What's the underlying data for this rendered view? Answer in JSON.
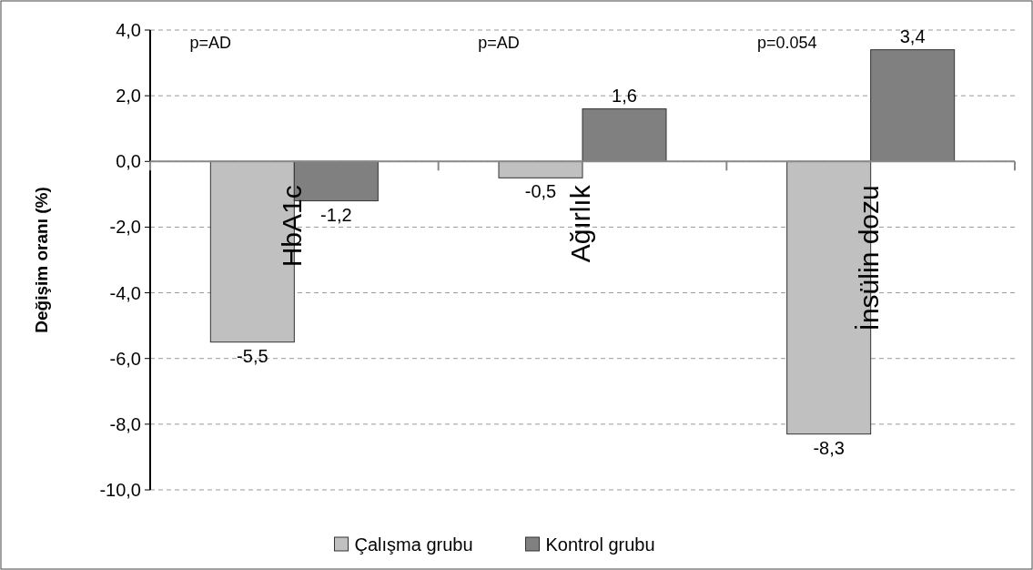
{
  "chart_data": {
    "type": "bar",
    "ylabel": "Değişim oranı (%)",
    "categories": [
      "HbA1c",
      "Ağırlık",
      "İnsülin dozu"
    ],
    "series": [
      {
        "name": "Çalışma grubu",
        "color": "#c0c0c0",
        "values": [
          -5.5,
          -0.5,
          -8.3
        ],
        "value_labels": [
          "-5,5",
          "-0,5",
          "-8,3"
        ]
      },
      {
        "name": "Kontrol grubu",
        "color": "#808080",
        "values": [
          -1.2,
          1.6,
          3.4
        ],
        "value_labels": [
          "-1,2",
          "1,6",
          "3,4"
        ]
      }
    ],
    "ylim": [
      -10,
      4
    ],
    "yticks": [
      {
        "value": -10,
        "label": "-10,0"
      },
      {
        "value": -8,
        "label": "-8,0"
      },
      {
        "value": -6,
        "label": "-6,0"
      },
      {
        "value": -4,
        "label": "-4,0"
      },
      {
        "value": -2,
        "label": "-2,0"
      },
      {
        "value": 0,
        "label": "0,0"
      },
      {
        "value": 2,
        "label": "2,0"
      },
      {
        "value": 4,
        "label": "4,0"
      }
    ],
    "annotations": [
      "p=AD",
      "p=AD",
      "p=0.054"
    ],
    "grid": "y",
    "legend": "bottom"
  }
}
